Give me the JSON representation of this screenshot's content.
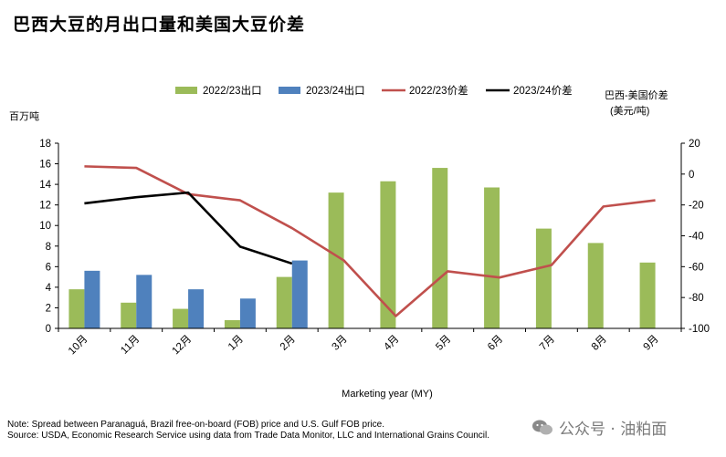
{
  "page_title": "巴西大豆的月出口量和美国大豆价差",
  "notes": {
    "note": "Note: Spread between Paranaguá, Brazil free-on-board (FOB) price and U.S. Gulf FOB price.",
    "source": "Source: USDA, Economic Research Service using data from Trade Data Monitor, LLC and International Grains Council."
  },
  "watermark": {
    "text": "公众号 · 油粕面",
    "icon": "wechat-icon"
  },
  "colors": {
    "bar_2223": "#9bbb59",
    "bar_2324": "#4f81bd",
    "line_2223": "#c0504d",
    "line_2324": "#000000",
    "axis": "#000000"
  },
  "chart_data": {
    "type": "bar+line",
    "title": "巴西大豆的月出口量和美国大豆价差",
    "xlabel": "Marketing year (MY)",
    "ylabel_left": "百万吨",
    "ylabel_right_line1": "巴西-美国价差",
    "ylabel_right_line2": "(美元/吨)",
    "ylim_left": [
      0,
      18
    ],
    "yticks_left": [
      0,
      2,
      4,
      6,
      8,
      10,
      12,
      14,
      16,
      18
    ],
    "ylim_right": [
      -100,
      20
    ],
    "yticks_right": [
      -100,
      -80,
      -60,
      -40,
      -20,
      0,
      20
    ],
    "categories": [
      "10月",
      "11月",
      "12月",
      "1月",
      "2月",
      "3月",
      "4月",
      "5月",
      "6月",
      "7月",
      "8月",
      "9月"
    ],
    "bar_series": [
      {
        "name": "2022/23出口",
        "color_key": "bar_2223",
        "values": [
          3.8,
          2.5,
          1.9,
          0.8,
          5.0,
          13.2,
          14.3,
          15.6,
          13.7,
          9.7,
          8.3,
          6.4
        ]
      },
      {
        "name": "2023/24出口",
        "color_key": "bar_2324",
        "values": [
          5.6,
          5.2,
          3.8,
          2.9,
          6.6,
          null,
          null,
          null,
          null,
          null,
          null,
          null
        ]
      }
    ],
    "line_series": [
      {
        "name": "2022/23价差",
        "color_key": "line_2223",
        "values": [
          5,
          4,
          -13,
          -17,
          -35,
          -56,
          -92,
          -63,
          -67,
          -59,
          -21,
          -17
        ]
      },
      {
        "name": "2023/24价差",
        "color_key": "line_2324",
        "values": [
          -19,
          -15,
          -12,
          -47,
          -58,
          null,
          null,
          null,
          null,
          null,
          null,
          null
        ]
      }
    ],
    "legend_position": "top"
  }
}
